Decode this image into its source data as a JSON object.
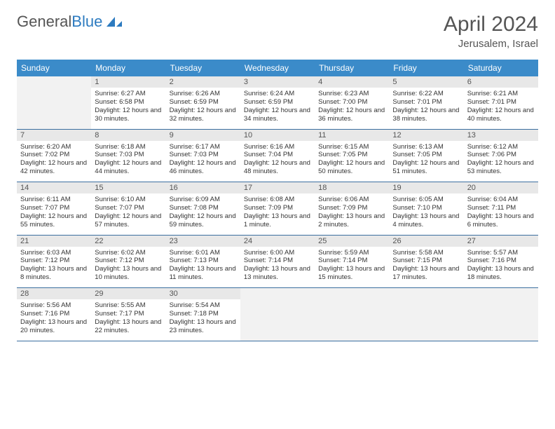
{
  "brand": {
    "part1": "General",
    "part2": "Blue"
  },
  "title": "April 2024",
  "location": "Jerusalem, Israel",
  "colors": {
    "header_bg": "#3b8bc9",
    "row_border": "#3b6fa0",
    "daynum_bg": "#e8e8e8",
    "empty_bg": "#f2f2f2",
    "logo_accent": "#2d7bc0"
  },
  "weekdays": [
    "Sunday",
    "Monday",
    "Tuesday",
    "Wednesday",
    "Thursday",
    "Friday",
    "Saturday"
  ],
  "start_offset": 1,
  "days": [
    {
      "n": 1,
      "sunrise": "6:27 AM",
      "sunset": "6:58 PM",
      "daylight": "12 hours and 30 minutes."
    },
    {
      "n": 2,
      "sunrise": "6:26 AM",
      "sunset": "6:59 PM",
      "daylight": "12 hours and 32 minutes."
    },
    {
      "n": 3,
      "sunrise": "6:24 AM",
      "sunset": "6:59 PM",
      "daylight": "12 hours and 34 minutes."
    },
    {
      "n": 4,
      "sunrise": "6:23 AM",
      "sunset": "7:00 PM",
      "daylight": "12 hours and 36 minutes."
    },
    {
      "n": 5,
      "sunrise": "6:22 AM",
      "sunset": "7:01 PM",
      "daylight": "12 hours and 38 minutes."
    },
    {
      "n": 6,
      "sunrise": "6:21 AM",
      "sunset": "7:01 PM",
      "daylight": "12 hours and 40 minutes."
    },
    {
      "n": 7,
      "sunrise": "6:20 AM",
      "sunset": "7:02 PM",
      "daylight": "12 hours and 42 minutes."
    },
    {
      "n": 8,
      "sunrise": "6:18 AM",
      "sunset": "7:03 PM",
      "daylight": "12 hours and 44 minutes."
    },
    {
      "n": 9,
      "sunrise": "6:17 AM",
      "sunset": "7:03 PM",
      "daylight": "12 hours and 46 minutes."
    },
    {
      "n": 10,
      "sunrise": "6:16 AM",
      "sunset": "7:04 PM",
      "daylight": "12 hours and 48 minutes."
    },
    {
      "n": 11,
      "sunrise": "6:15 AM",
      "sunset": "7:05 PM",
      "daylight": "12 hours and 50 minutes."
    },
    {
      "n": 12,
      "sunrise": "6:13 AM",
      "sunset": "7:05 PM",
      "daylight": "12 hours and 51 minutes."
    },
    {
      "n": 13,
      "sunrise": "6:12 AM",
      "sunset": "7:06 PM",
      "daylight": "12 hours and 53 minutes."
    },
    {
      "n": 14,
      "sunrise": "6:11 AM",
      "sunset": "7:07 PM",
      "daylight": "12 hours and 55 minutes."
    },
    {
      "n": 15,
      "sunrise": "6:10 AM",
      "sunset": "7:07 PM",
      "daylight": "12 hours and 57 minutes."
    },
    {
      "n": 16,
      "sunrise": "6:09 AM",
      "sunset": "7:08 PM",
      "daylight": "12 hours and 59 minutes."
    },
    {
      "n": 17,
      "sunrise": "6:08 AM",
      "sunset": "7:09 PM",
      "daylight": "13 hours and 1 minute."
    },
    {
      "n": 18,
      "sunrise": "6:06 AM",
      "sunset": "7:09 PM",
      "daylight": "13 hours and 2 minutes."
    },
    {
      "n": 19,
      "sunrise": "6:05 AM",
      "sunset": "7:10 PM",
      "daylight": "13 hours and 4 minutes."
    },
    {
      "n": 20,
      "sunrise": "6:04 AM",
      "sunset": "7:11 PM",
      "daylight": "13 hours and 6 minutes."
    },
    {
      "n": 21,
      "sunrise": "6:03 AM",
      "sunset": "7:12 PM",
      "daylight": "13 hours and 8 minutes."
    },
    {
      "n": 22,
      "sunrise": "6:02 AM",
      "sunset": "7:12 PM",
      "daylight": "13 hours and 10 minutes."
    },
    {
      "n": 23,
      "sunrise": "6:01 AM",
      "sunset": "7:13 PM",
      "daylight": "13 hours and 11 minutes."
    },
    {
      "n": 24,
      "sunrise": "6:00 AM",
      "sunset": "7:14 PM",
      "daylight": "13 hours and 13 minutes."
    },
    {
      "n": 25,
      "sunrise": "5:59 AM",
      "sunset": "7:14 PM",
      "daylight": "13 hours and 15 minutes."
    },
    {
      "n": 26,
      "sunrise": "5:58 AM",
      "sunset": "7:15 PM",
      "daylight": "13 hours and 17 minutes."
    },
    {
      "n": 27,
      "sunrise": "5:57 AM",
      "sunset": "7:16 PM",
      "daylight": "13 hours and 18 minutes."
    },
    {
      "n": 28,
      "sunrise": "5:56 AM",
      "sunset": "7:16 PM",
      "daylight": "13 hours and 20 minutes."
    },
    {
      "n": 29,
      "sunrise": "5:55 AM",
      "sunset": "7:17 PM",
      "daylight": "13 hours and 22 minutes."
    },
    {
      "n": 30,
      "sunrise": "5:54 AM",
      "sunset": "7:18 PM",
      "daylight": "13 hours and 23 minutes."
    }
  ],
  "labels": {
    "sunrise": "Sunrise:",
    "sunset": "Sunset:",
    "daylight": "Daylight:"
  }
}
